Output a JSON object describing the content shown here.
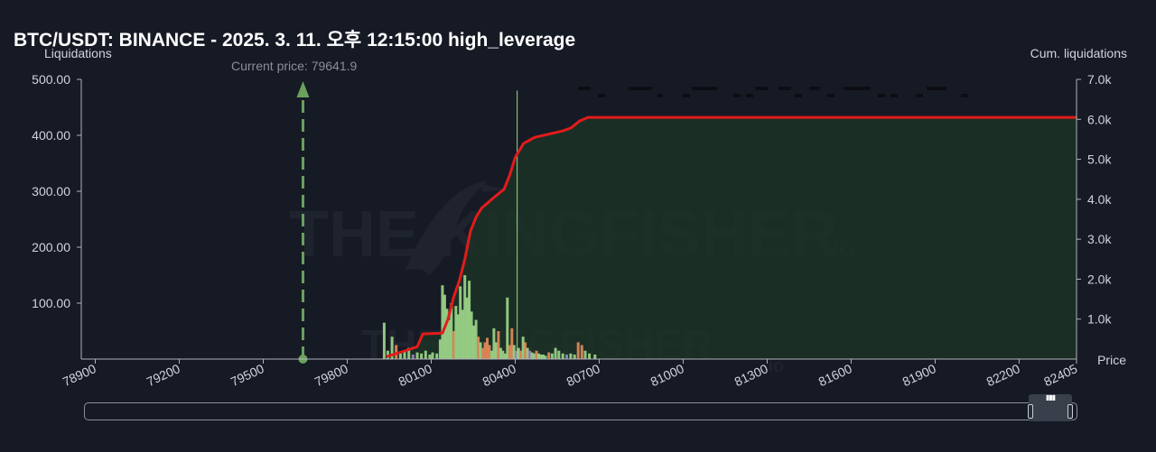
{
  "title": "BTC/USDT: BINANCE - 2025. 3. 11. 오후 12:15:00 high_leverage",
  "left_axis_title": "Liquidations",
  "right_axis_title": "Cum. liquidations",
  "x_axis_title": "Price",
  "current_price_label": "Current price: 79641.9",
  "watermark_text": "THE KINGFISHER",
  "watermark_suffix": ".io",
  "colors": {
    "background": "#161a25",
    "cum_line": "#e31b1b",
    "cum_fill": "#1b3326",
    "bar_green": "#9ed88a",
    "bar_orange": "#e88c5a",
    "bar_purple": "#9b86c8",
    "current_price": "#6aa15c"
  },
  "chart_data": {
    "type": "bar",
    "title": "BTC/USDT: BINANCE - 2025. 3. 11. 오후 12:15:00 high_leverage",
    "xlabel": "Price",
    "ylabel": "Liquidations",
    "y2label": "Cum. liquidations",
    "xlim": [
      78850,
      82405
    ],
    "ylim": [
      0,
      500
    ],
    "y2lim": [
      0,
      7000
    ],
    "x_ticks": [
      "78900",
      "79200",
      "79500",
      "79800",
      "80100",
      "80400",
      "80700",
      "81000",
      "81300",
      "81600",
      "81900",
      "82200",
      "82405"
    ],
    "x_tick_values": [
      78900,
      79200,
      79500,
      79800,
      80100,
      80400,
      80700,
      81000,
      81300,
      81600,
      81900,
      82200,
      82405
    ],
    "y_ticks": [
      "100.00",
      "200.00",
      "300.00",
      "400.00",
      "500.00"
    ],
    "y_tick_values": [
      100,
      200,
      300,
      400,
      500
    ],
    "y2_ticks": [
      "1.0k",
      "2.0k",
      "3.0k",
      "4.0k",
      "5.0k",
      "6.0k",
      "7.0k"
    ],
    "y2_tick_values": [
      1000,
      2000,
      3000,
      4000,
      5000,
      6000,
      7000
    ],
    "current_price": 79641.9,
    "series": [
      {
        "kind": "bar",
        "bars": [
          {
            "x": 79932,
            "y": 65,
            "c": "g"
          },
          {
            "x": 79945,
            "y": 15,
            "c": "g"
          },
          {
            "x": 79960,
            "y": 40,
            "c": "g"
          },
          {
            "x": 79975,
            "y": 25,
            "c": "o"
          },
          {
            "x": 79990,
            "y": 10,
            "c": "g"
          },
          {
            "x": 80005,
            "y": 15,
            "c": "g"
          },
          {
            "x": 80020,
            "y": 20,
            "c": "g"
          },
          {
            "x": 80035,
            "y": 8,
            "c": "p"
          },
          {
            "x": 80050,
            "y": 12,
            "c": "g"
          },
          {
            "x": 80065,
            "y": 10,
            "c": "g"
          },
          {
            "x": 80080,
            "y": 15,
            "c": "g"
          },
          {
            "x": 80095,
            "y": 8,
            "c": "g"
          },
          {
            "x": 80105,
            "y": 12,
            "c": "g"
          },
          {
            "x": 80120,
            "y": 10,
            "c": "g"
          },
          {
            "x": 80132,
            "y": 35,
            "c": "g"
          },
          {
            "x": 80140,
            "y": 132,
            "c": "g"
          },
          {
            "x": 80148,
            "y": 115,
            "c": "g"
          },
          {
            "x": 80156,
            "y": 90,
            "c": "g"
          },
          {
            "x": 80164,
            "y": 70,
            "c": "g"
          },
          {
            "x": 80172,
            "y": 100,
            "c": "g"
          },
          {
            "x": 80180,
            "y": 50,
            "c": "o"
          },
          {
            "x": 80188,
            "y": 95,
            "c": "g"
          },
          {
            "x": 80196,
            "y": 80,
            "c": "g"
          },
          {
            "x": 80204,
            "y": 130,
            "c": "g"
          },
          {
            "x": 80212,
            "y": 88,
            "c": "g"
          },
          {
            "x": 80220,
            "y": 150,
            "c": "g"
          },
          {
            "x": 80228,
            "y": 110,
            "c": "g"
          },
          {
            "x": 80236,
            "y": 140,
            "c": "g"
          },
          {
            "x": 80244,
            "y": 85,
            "c": "g"
          },
          {
            "x": 80252,
            "y": 60,
            "c": "g"
          },
          {
            "x": 80260,
            "y": 70,
            "c": "g"
          },
          {
            "x": 80268,
            "y": 40,
            "c": "o"
          },
          {
            "x": 80276,
            "y": 30,
            "c": "g"
          },
          {
            "x": 80284,
            "y": 20,
            "c": "o"
          },
          {
            "x": 80292,
            "y": 30,
            "c": "o"
          },
          {
            "x": 80300,
            "y": 38,
            "c": "o"
          },
          {
            "x": 80308,
            "y": 25,
            "c": "o"
          },
          {
            "x": 80316,
            "y": 15,
            "c": "g"
          },
          {
            "x": 80324,
            "y": 55,
            "c": "g"
          },
          {
            "x": 80332,
            "y": 30,
            "c": "g"
          },
          {
            "x": 80340,
            "y": 50,
            "c": "o"
          },
          {
            "x": 80348,
            "y": 20,
            "c": "g"
          },
          {
            "x": 80356,
            "y": 15,
            "c": "g"
          },
          {
            "x": 80364,
            "y": 10,
            "c": "g"
          },
          {
            "x": 80372,
            "y": 110,
            "c": "g"
          },
          {
            "x": 80380,
            "y": 25,
            "c": "o"
          },
          {
            "x": 80388,
            "y": 55,
            "c": "o"
          },
          {
            "x": 80396,
            "y": 25,
            "c": "g"
          },
          {
            "x": 80404,
            "y": 15,
            "c": "p"
          },
          {
            "x": 80412,
            "y": 20,
            "c": "g"
          },
          {
            "x": 80420,
            "y": 15,
            "c": "o"
          },
          {
            "x": 80428,
            "y": 40,
            "c": "g"
          },
          {
            "x": 80436,
            "y": 30,
            "c": "o"
          },
          {
            "x": 80444,
            "y": 20,
            "c": "g"
          },
          {
            "x": 80452,
            "y": 15,
            "c": "p"
          },
          {
            "x": 80460,
            "y": 12,
            "c": "g"
          },
          {
            "x": 80468,
            "y": 10,
            "c": "g"
          },
          {
            "x": 80476,
            "y": 15,
            "c": "o"
          },
          {
            "x": 80484,
            "y": 10,
            "c": "g"
          },
          {
            "x": 80492,
            "y": 8,
            "c": "g"
          },
          {
            "x": 80500,
            "y": 8,
            "c": "g"
          },
          {
            "x": 80508,
            "y": 6,
            "c": "g"
          },
          {
            "x": 80520,
            "y": 12,
            "c": "o"
          },
          {
            "x": 80532,
            "y": 10,
            "c": "g"
          },
          {
            "x": 80544,
            "y": 20,
            "c": "g"
          },
          {
            "x": 80556,
            "y": 15,
            "c": "g"
          },
          {
            "x": 80570,
            "y": 10,
            "c": "g"
          },
          {
            "x": 80584,
            "y": 8,
            "c": "p"
          },
          {
            "x": 80598,
            "y": 10,
            "c": "g"
          },
          {
            "x": 80612,
            "y": 8,
            "c": "g"
          },
          {
            "x": 80625,
            "y": 30,
            "c": "o"
          },
          {
            "x": 80638,
            "y": 25,
            "c": "o"
          },
          {
            "x": 80650,
            "y": 15,
            "c": "g"
          },
          {
            "x": 80665,
            "y": 10,
            "c": "g"
          },
          {
            "x": 80685,
            "y": 8,
            "c": "g"
          }
        ]
      },
      {
        "kind": "line",
        "name": "Cum. liquidations",
        "x": [
          79940,
          79990,
          80050,
          80070,
          80100,
          80140,
          80160,
          80180,
          80200,
          80220,
          80240,
          80260,
          80280,
          80300,
          80330,
          80360,
          80380,
          80400,
          80430,
          80470,
          80520,
          80570,
          80600,
          80630,
          80660,
          80700,
          82405
        ],
        "y": [
          60,
          170,
          310,
          630,
          640,
          650,
          1000,
          1550,
          1950,
          2500,
          3200,
          3550,
          3780,
          3900,
          4080,
          4250,
          4600,
          5050,
          5400,
          5550,
          5630,
          5710,
          5790,
          5960,
          6050,
          6050,
          6050
        ]
      }
    ],
    "reference_line": {
      "x": 80407,
      "y_top": 480
    }
  }
}
